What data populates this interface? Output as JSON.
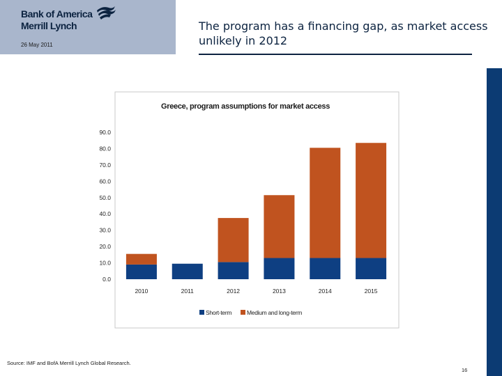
{
  "header": {
    "logo_line1": "Bank of America",
    "logo_line2": "Merrill Lynch",
    "date": "26 May 2011",
    "title": "The program has a financing gap, as market access unlikely in 2012"
  },
  "footer": {
    "source": "Source: IMF and BofA Merrill Lynch Global Research.",
    "page_number": "16"
  },
  "colors": {
    "header_box": "#a9b6cc",
    "brand_navy": "#0c2340",
    "short_term": "#0e3f82",
    "medium_long_term": "#c0531f"
  },
  "chart_data": {
    "type": "bar",
    "stacked": true,
    "title": "Greece, program assumptions for market access",
    "categories": [
      "2010",
      "2011",
      "2012",
      "2013",
      "2014",
      "2015"
    ],
    "series": [
      {
        "name": "Short-term",
        "color": "#0e3f82",
        "values": [
          9.0,
          9.5,
          10.5,
          13.0,
          13.0,
          13.0
        ]
      },
      {
        "name": "Medium and long-term",
        "color": "#c0531f",
        "values": [
          6.5,
          0.0,
          27.0,
          38.5,
          67.5,
          70.5
        ]
      }
    ],
    "ylim": [
      0,
      90
    ],
    "yticks": [
      0,
      10,
      20,
      30,
      40,
      50,
      60,
      70,
      80,
      90
    ],
    "ytick_labels": [
      "0.0",
      "10.0",
      "20.0",
      "30.0",
      "40.0",
      "50.0",
      "60.0",
      "70.0",
      "80.0",
      "90.0"
    ],
    "xlabel": "",
    "ylabel": "",
    "grid": false,
    "legend_position": "bottom"
  }
}
